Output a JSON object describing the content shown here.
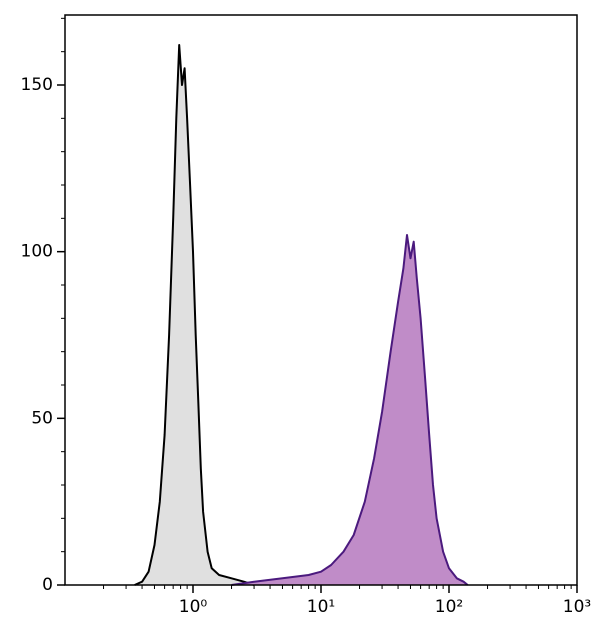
{
  "chart_data": {
    "type": "area",
    "xscale": "log",
    "xlim": [
      0.1,
      1000
    ],
    "ylim": [
      0,
      171
    ],
    "xticks": [
      {
        "value": 1,
        "label": "10⁰"
      },
      {
        "value": 10,
        "label": "10¹"
      },
      {
        "value": 100,
        "label": "10²"
      },
      {
        "value": 1000,
        "label": "10³"
      }
    ],
    "xminorticks": [
      0.2,
      0.3,
      0.4,
      0.5,
      0.6,
      0.7,
      0.8,
      0.9,
      2,
      3,
      4,
      5,
      6,
      7,
      8,
      9,
      20,
      30,
      40,
      50,
      60,
      70,
      80,
      90,
      200,
      300,
      400,
      500,
      600,
      700,
      800,
      900
    ],
    "yticks": [
      0,
      50,
      100,
      150
    ],
    "yminorticks": [
      10,
      20,
      30,
      40,
      60,
      70,
      80,
      90,
      110,
      120,
      130,
      140,
      160,
      170
    ],
    "series": [
      {
        "color": "#e0e0e0",
        "line_color": "#000000",
        "x": [
          0.35,
          0.4,
          0.45,
          0.5,
          0.55,
          0.6,
          0.65,
          0.7,
          0.74,
          0.78,
          0.82,
          0.86,
          0.9,
          0.95,
          1.0,
          1.05,
          1.1,
          1.15,
          1.2,
          1.3,
          1.4,
          1.6,
          2.0,
          2.5,
          3.0
        ],
        "values": [
          0,
          1,
          4,
          12,
          25,
          45,
          75,
          110,
          140,
          162,
          150,
          155,
          140,
          120,
          100,
          75,
          55,
          35,
          22,
          10,
          5,
          3,
          2,
          1,
          0
        ]
      },
      {
        "color": "#c08cc8",
        "line_color": "#4b1a7e",
        "x": [
          2,
          3,
          5,
          8,
          10,
          12,
          15,
          18,
          22,
          26,
          30,
          35,
          40,
          44,
          47,
          50,
          53,
          56,
          60,
          65,
          70,
          75,
          80,
          90,
          100,
          115,
          130,
          140
        ],
        "values": [
          0,
          1,
          2,
          3,
          4,
          6,
          10,
          15,
          25,
          38,
          52,
          70,
          85,
          95,
          105,
          98,
          103,
          92,
          80,
          62,
          45,
          30,
          20,
          10,
          5,
          2,
          1,
          0
        ]
      }
    ]
  }
}
